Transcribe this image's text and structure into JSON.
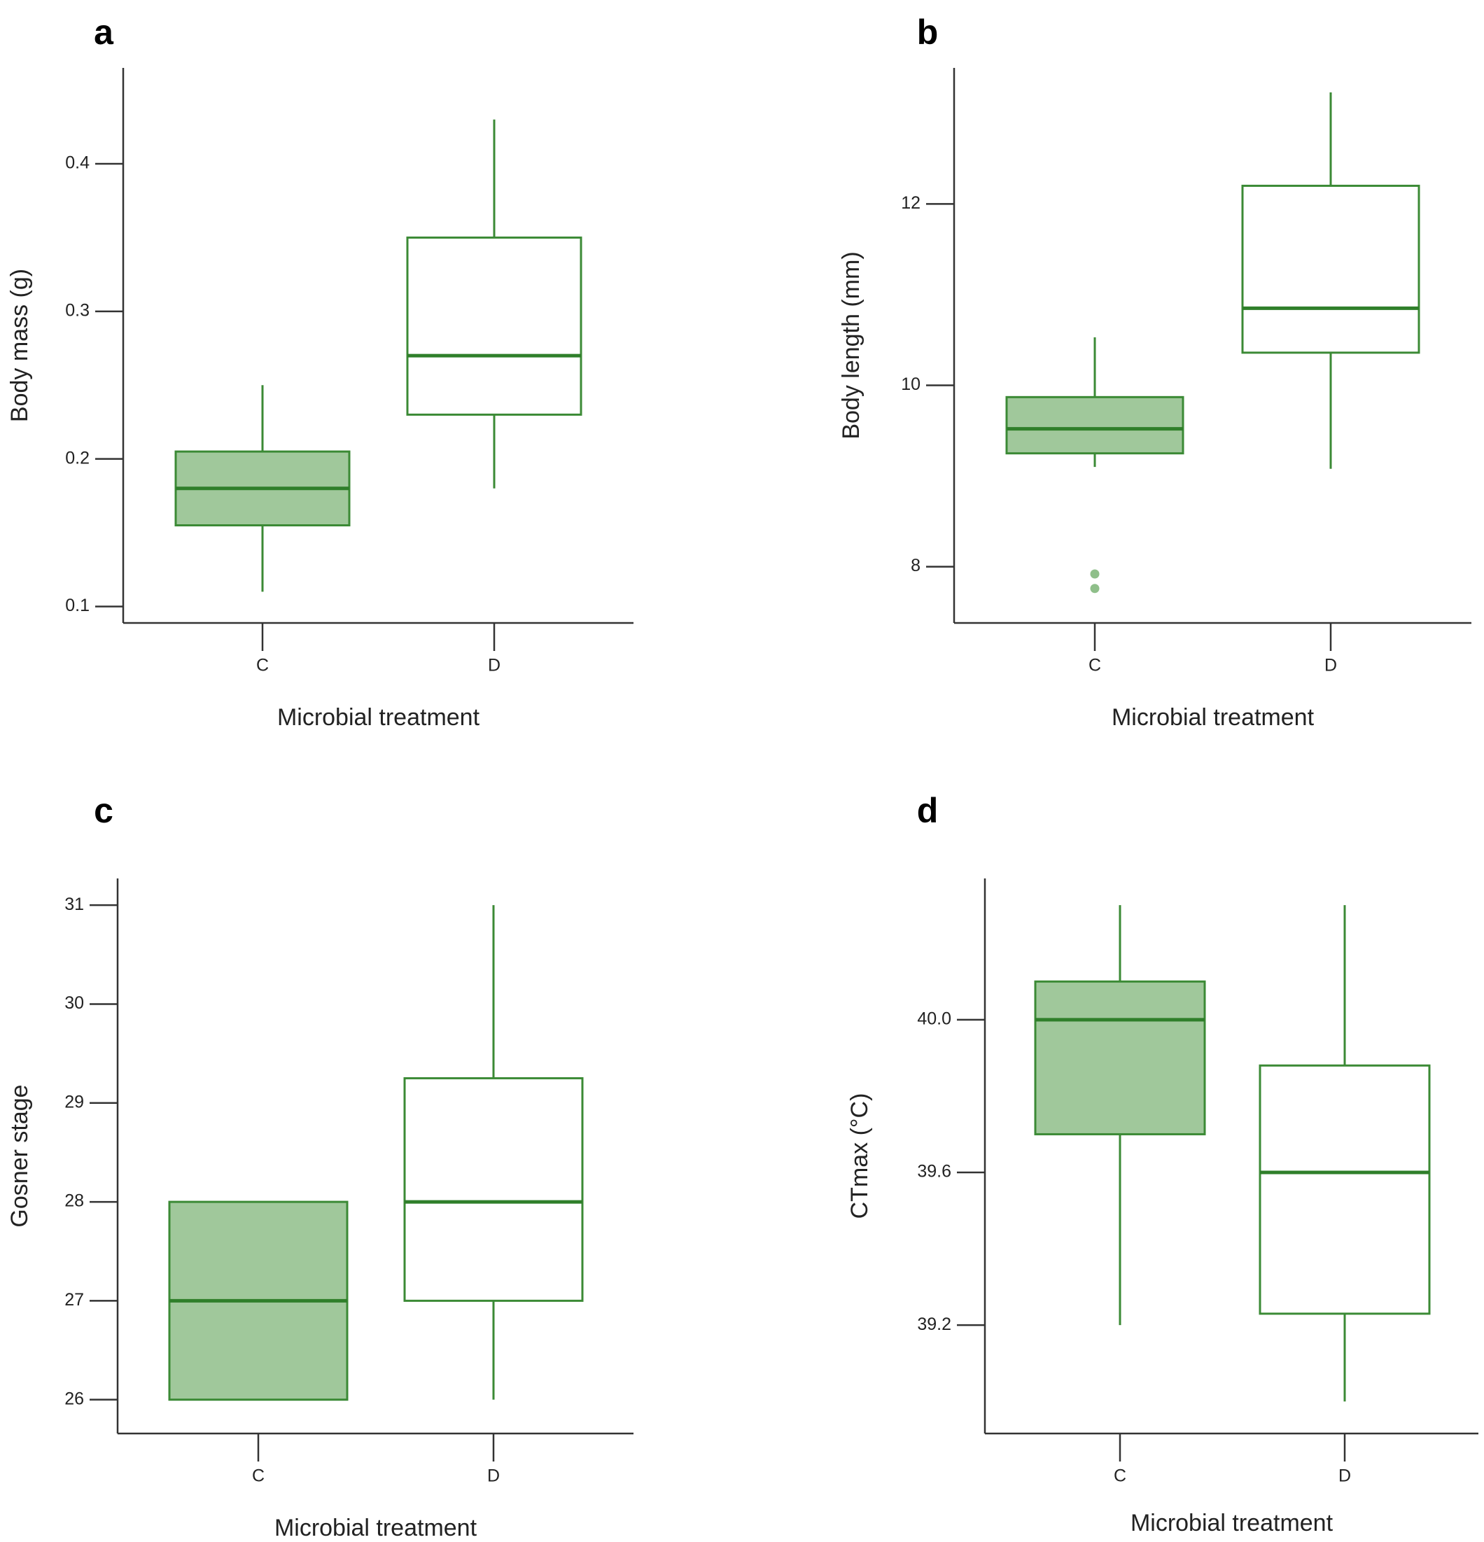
{
  "chart_data": [
    {
      "panel": "a",
      "type": "boxplot",
      "xlabel": "Microbial treatment",
      "ylabel": "Body mass (g)",
      "ylim": [
        0.095,
        0.465
      ],
      "yticks": [
        0.1,
        0.2,
        0.3,
        0.4
      ],
      "ytick_labels": [
        "0.1",
        "0.2",
        "0.3",
        "0.4"
      ],
      "categories": [
        "C",
        "D"
      ],
      "boxes": [
        {
          "category": "C",
          "whisker_low": 0.11,
          "q1": 0.155,
          "median": 0.18,
          "q3": 0.205,
          "whisker_high": 0.25,
          "filled": true,
          "outliers": []
        },
        {
          "category": "D",
          "whisker_low": 0.18,
          "q1": 0.23,
          "median": 0.27,
          "q3": 0.35,
          "whisker_high": 0.43,
          "filled": false,
          "outliers": []
        }
      ]
    },
    {
      "panel": "b",
      "type": "boxplot",
      "xlabel": "Microbial treatment",
      "ylabel": "Body length (mm)",
      "ylim": [
        7.48,
        13.5
      ],
      "yticks": [
        8,
        10,
        12
      ],
      "ytick_labels": [
        "8",
        "10",
        "12"
      ],
      "categories": [
        "C",
        "D"
      ],
      "boxes": [
        {
          "category": "C",
          "whisker_low": 9.1,
          "q1": 9.25,
          "median": 9.52,
          "q3": 9.87,
          "whisker_high": 10.53,
          "filled": true,
          "outliers": [
            7.92,
            7.76
          ]
        },
        {
          "category": "D",
          "whisker_low": 9.08,
          "q1": 10.36,
          "median": 10.85,
          "q3": 12.2,
          "whisker_high": 13.23,
          "filled": false,
          "outliers": []
        }
      ]
    },
    {
      "panel": "c",
      "type": "boxplot",
      "xlabel": "Microbial treatment",
      "ylabel": "Gosner stage",
      "ylim": [
        25.75,
        31.27
      ],
      "yticks": [
        26,
        27,
        28,
        29,
        30,
        31
      ],
      "ytick_labels": [
        "26",
        "27",
        "28",
        "29",
        "30",
        "31"
      ],
      "categories": [
        "C",
        "D"
      ],
      "boxes": [
        {
          "category": "C",
          "whisker_low": 26,
          "q1": 26,
          "median": 27,
          "q3": 28,
          "whisker_high": 28,
          "filled": true,
          "outliers": []
        },
        {
          "category": "D",
          "whisker_low": 26,
          "q1": 27,
          "median": 28,
          "q3": 29.25,
          "whisker_high": 31,
          "filled": false,
          "outliers": []
        }
      ]
    },
    {
      "panel": "d",
      "type": "boxplot",
      "xlabel": "Microbial treatment",
      "ylabel": "CTmax (°C)",
      "ylim": [
        38.94,
        40.37
      ],
      "yticks": [
        39.2,
        39.6,
        40.0
      ],
      "ytick_labels": [
        "39.2",
        "39.6",
        "40.0"
      ],
      "categories": [
        "C",
        "D"
      ],
      "boxes": [
        {
          "category": "C",
          "whisker_low": 39.2,
          "q1": 39.7,
          "median": 40.0,
          "q3": 40.1,
          "whisker_high": 40.3,
          "filled": true,
          "outliers": []
        },
        {
          "category": "D",
          "whisker_low": 39.0,
          "q1": 39.23,
          "median": 39.6,
          "q3": 39.88,
          "whisker_high": 40.3,
          "filled": false,
          "outliers": []
        }
      ]
    }
  ],
  "colors": {
    "box_stroke": "#3b8a35",
    "box_fill": "#a0c89b",
    "median": "#2f7f2a",
    "outlier": "#8fbf8a",
    "axis": "#333333",
    "text": "#222222"
  }
}
